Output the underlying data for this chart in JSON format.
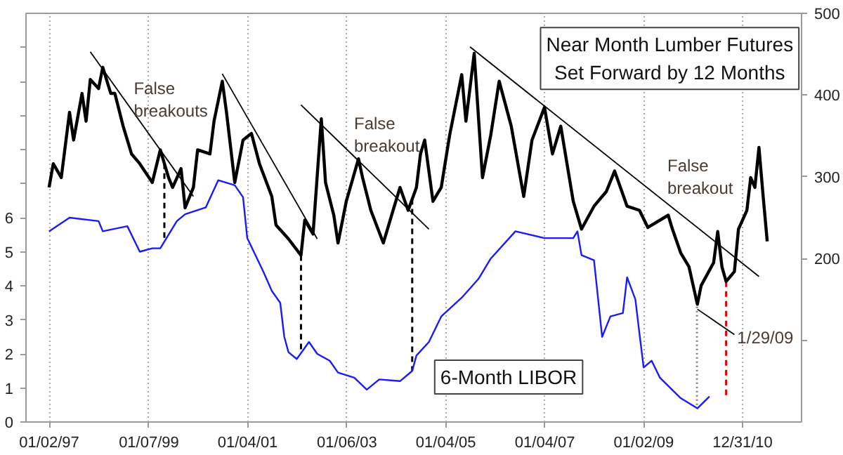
{
  "chart_data": {
    "type": "line",
    "xlim": [
      "1996-07-15",
      "2012-03-10"
    ],
    "ylim": [
      0,
      12
    ],
    "y2lim": [
      0,
      500
    ],
    "xticks": [
      {
        "value": "1997-01-02",
        "label": "01/02/97"
      },
      {
        "value": "1999-01-07",
        "label": "01/07/99"
      },
      {
        "value": "2001-01-04",
        "label": "01/04/01"
      },
      {
        "value": "2003-01-06",
        "label": "01/06/03"
      },
      {
        "value": "2005-01-04",
        "label": "01/04/05"
      },
      {
        "value": "2007-01-04",
        "label": "01/04/07"
      },
      {
        "value": "2009-01-02",
        "label": "01/02/09"
      },
      {
        "value": "2010-12-31",
        "label": "12/31/10"
      }
    ],
    "yticks": [
      0,
      1,
      2,
      3,
      4,
      5,
      6,
      {
        "value": 7,
        "label": null
      },
      {
        "value": 8,
        "label": null
      },
      {
        "value": 9,
        "label": null
      },
      {
        "value": 10,
        "label": null
      },
      {
        "value": 11,
        "label": null
      }
    ],
    "y2ticks": [
      {
        "value": 100,
        "label": null
      },
      200,
      300,
      400,
      500
    ],
    "grid": "x",
    "series": [
      {
        "name": "Near Month Lumber Futures\nSet Forward by 12 Months",
        "color": "#000000",
        "axis": "y2",
        "x": [
          "1997-01",
          "1997-02",
          "1997-04",
          "1997-06",
          "1997-07",
          "1997-09",
          "1997-10",
          "1997-11",
          "1998-01",
          "1998-02",
          "1998-04",
          "1998-05",
          "1998-07",
          "1998-09",
          "1998-11",
          "1999-02",
          "1999-04",
          "1999-06",
          "1999-07",
          "1999-09",
          "1999-10",
          "1999-12",
          "2000-01",
          "2000-04",
          "2000-05",
          "2000-07",
          "2000-08",
          "2000-10",
          "2000-12",
          "2001-02",
          "2001-04",
          "2001-07",
          "2001-08",
          "2001-11",
          "2002-02",
          "2002-03",
          "2002-05",
          "2002-07",
          "2002-08",
          "2002-10",
          "2002-11",
          "2003-01",
          "2003-04",
          "2003-05",
          "2003-07",
          "2003-10",
          "2003-12",
          "2004-02",
          "2004-04",
          "2004-06",
          "2004-07",
          "2004-08",
          "2004-10",
          "2004-12",
          "2005-02",
          "2005-05",
          "2005-06",
          "2005-08",
          "2005-10",
          "2005-12",
          "2006-02",
          "2006-05",
          "2006-08",
          "2006-10",
          "2007-01",
          "2007-03",
          "2007-05",
          "2007-08",
          "2007-10",
          "2008-01",
          "2008-04",
          "2008-06",
          "2008-09",
          "2008-12",
          "2009-02",
          "2009-07",
          "2009-08",
          "2009-10",
          "2009-12",
          "2010-02",
          "2010-03",
          "2010-06",
          "2010-07",
          "2010-08",
          "2010-09",
          "2010-11",
          "2010-12",
          "2011-02",
          "2011-03",
          "2011-04",
          "2011-05",
          "2011-06",
          "2011-07"
        ],
        "values": [
          287,
          316,
          299,
          379,
          345,
          402,
          368,
          419,
          408,
          434,
          402,
          402,
          362,
          328,
          316,
          293,
          333,
          299,
          287,
          310,
          262,
          287,
          333,
          328,
          368,
          417,
          379,
          293,
          345,
          353,
          316,
          276,
          241,
          224,
          204,
          247,
          230,
          371,
          293,
          253,
          219,
          270,
          322,
          299,
          259,
          219,
          253,
          287,
          259,
          287,
          328,
          345,
          270,
          287,
          351,
          425,
          368,
          451,
          299,
          351,
          417,
          362,
          276,
          345,
          385,
          328,
          362,
          270,
          236,
          264,
          282,
          307,
          264,
          259,
          238,
          253,
          236,
          207,
          190,
          144,
          167,
          195,
          233,
          190,
          172,
          184,
          236,
          259,
          299,
          287,
          336,
          276,
          221
        ]
      },
      {
        "name": "6-Month LIBOR",
        "color": "#1a1aff",
        "x": [
          "1997-01",
          "1997-06",
          "1998-01",
          "1998-02",
          "1998-08",
          "1998-11",
          "1999-02",
          "1999-04",
          "1999-08",
          "1999-10",
          "2000-03",
          "2000-06",
          "2000-10",
          "2000-12",
          "2001-01",
          "2001-05",
          "2001-07",
          "2001-09",
          "2001-10",
          "2001-11",
          "2002-01",
          "2002-04",
          "2002-06",
          "2002-09",
          "2002-11",
          "2003-03",
          "2003-06",
          "2003-09",
          "2004-02",
          "2004-05",
          "2004-06",
          "2004-09",
          "2004-12",
          "2005-05",
          "2005-09",
          "2005-12",
          "2006-06",
          "2007-01",
          "2007-08",
          "2007-09",
          "2007-10",
          "2008-01",
          "2008-03",
          "2008-05",
          "2008-08",
          "2008-09",
          "2008-11",
          "2008-12",
          "2009-01",
          "2009-03",
          "2009-05",
          "2009-10",
          "2010-02",
          "2010-05"
        ],
        "values": [
          5.6,
          6.0,
          5.9,
          5.6,
          5.75,
          5.0,
          5.1,
          5.1,
          5.9,
          6.1,
          6.3,
          7.1,
          6.95,
          6.6,
          5.4,
          4.4,
          3.85,
          3.5,
          2.5,
          2.05,
          1.85,
          2.35,
          2.0,
          1.8,
          1.45,
          1.3,
          0.95,
          1.25,
          1.2,
          1.5,
          1.95,
          2.35,
          3.1,
          3.65,
          4.2,
          4.8,
          5.6,
          5.4,
          5.4,
          5.6,
          4.9,
          4.75,
          2.5,
          3.1,
          3.2,
          4.25,
          3.6,
          2.6,
          1.6,
          1.8,
          1.3,
          0.7,
          0.4,
          0.75
        ]
      },
      {
        "color": "#000000",
        "axis": "y2",
        "x": [
          "1997-11",
          "1999-12"
        ],
        "values": [
          453,
          276
        ]
      },
      {
        "color": "#000000",
        "axis": "y2",
        "x": [
          "2000-07",
          "2002-06"
        ],
        "values": [
          426,
          224
        ]
      },
      {
        "color": "#000000",
        "axis": "y2",
        "x": [
          "2002-02",
          "2004-09"
        ],
        "values": [
          388,
          236
        ]
      },
      {
        "color": "#000000",
        "axis": "y2",
        "x": [
          "2005-07",
          "2011-05"
        ],
        "values": [
          459,
          178
        ]
      },
      {
        "color": "#000000",
        "axis": "y2",
        "x": [
          "2010-02",
          "2010-11"
        ],
        "values": [
          138,
          107
        ]
      }
    ],
    "ref_lines": [
      {
        "axis": "x",
        "value": "1999-05-01",
        "color": "#000000",
        "line_style": "dashed"
      },
      {
        "axis": "x",
        "value": "2002-02-01",
        "color": "#000000",
        "line_style": "dashed"
      },
      {
        "axis": "x",
        "value": "2004-05-01",
        "color": "#000000",
        "line_style": "dashed"
      },
      {
        "axis": "x",
        "value": "2010-01-29",
        "color": "#808080",
        "line_style": "dotted"
      },
      {
        "axis": "x",
        "value": "2010-09-01",
        "color": "#e00000",
        "line_style": "dashed"
      }
    ],
    "annotations": [
      "False\nbreakouts",
      "False\nbreakout",
      "False\nbreakout",
      "1/29/09"
    ]
  }
}
